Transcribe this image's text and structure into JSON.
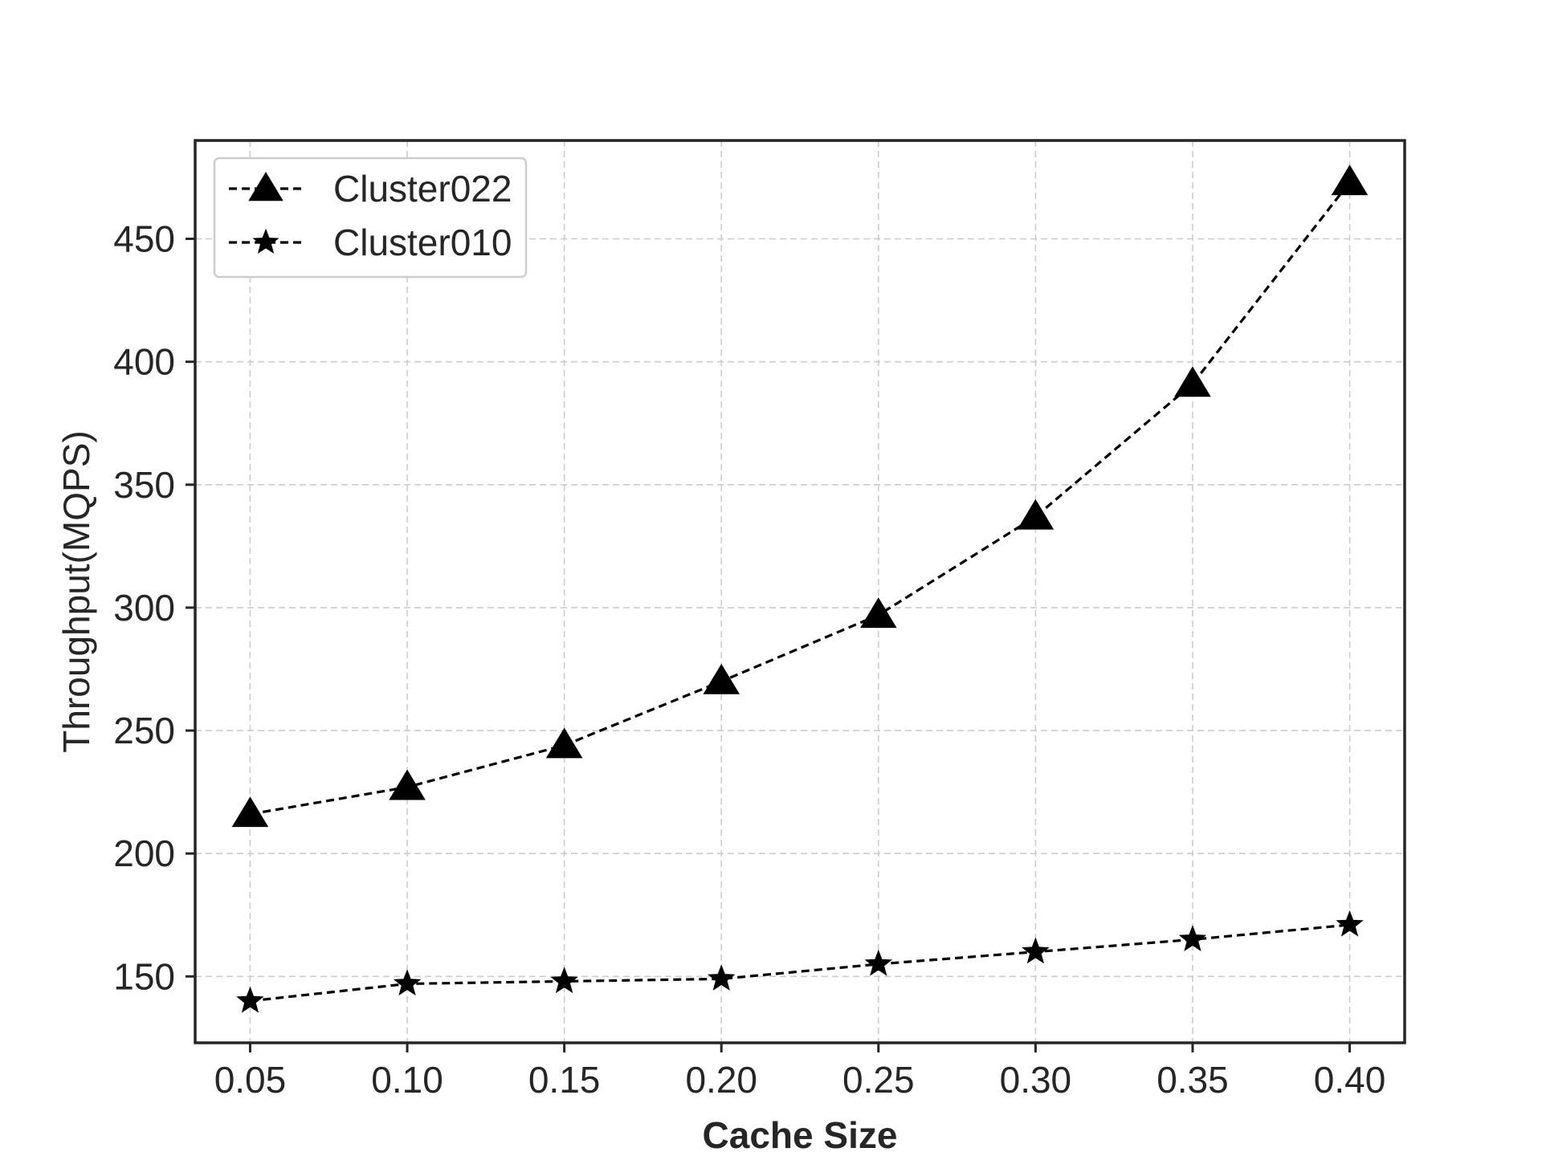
{
  "chart_data": {
    "type": "line",
    "title": "",
    "xlabel": "Cache Size",
    "ylabel": "Throughput(MQPS)",
    "x": [
      0.05,
      0.1,
      0.15,
      0.2,
      0.25,
      0.3,
      0.35,
      0.4
    ],
    "x_tick_labels": [
      "0.05",
      "0.10",
      "0.15",
      "0.20",
      "0.25",
      "0.30",
      "0.35",
      "0.40"
    ],
    "y_ticks": [
      150,
      200,
      250,
      300,
      350,
      400,
      450
    ],
    "y_tick_labels": [
      "150",
      "200",
      "250",
      "300",
      "350",
      "400",
      "450"
    ],
    "xlim": [
      0.0325,
      0.4175
    ],
    "ylim": [
      123,
      490
    ],
    "grid": true,
    "legend_position": "top-left",
    "series": [
      {
        "name": "Cluster022",
        "marker": "triangle",
        "line_style": "dashed",
        "color": "#000000",
        "values": [
          216,
          227,
          244,
          270,
          297,
          337,
          391,
          473
        ]
      },
      {
        "name": "Cluster010",
        "marker": "star",
        "line_style": "dashed",
        "color": "#000000",
        "values": [
          140,
          147,
          148,
          149,
          155,
          160,
          165,
          171
        ]
      }
    ]
  }
}
